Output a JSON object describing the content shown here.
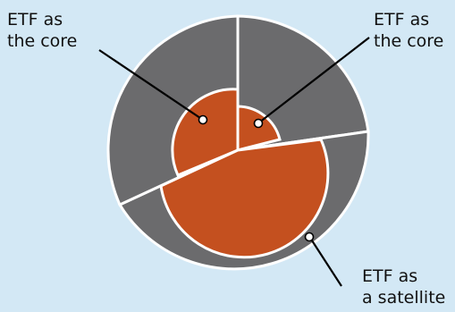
{
  "labels": {
    "core_left": {
      "line1": "ETF as",
      "line2": "the core"
    },
    "core_right": {
      "line1": "ETF as",
      "line2": "the core"
    },
    "satellite": {
      "line1": "ETF as",
      "line2": "a satellite"
    }
  },
  "colors": {
    "background": "#d3e8f5",
    "gray": "#6b6b6d",
    "orange": "#c4501f",
    "divider": "#ffffff",
    "leader": "#000000"
  }
}
